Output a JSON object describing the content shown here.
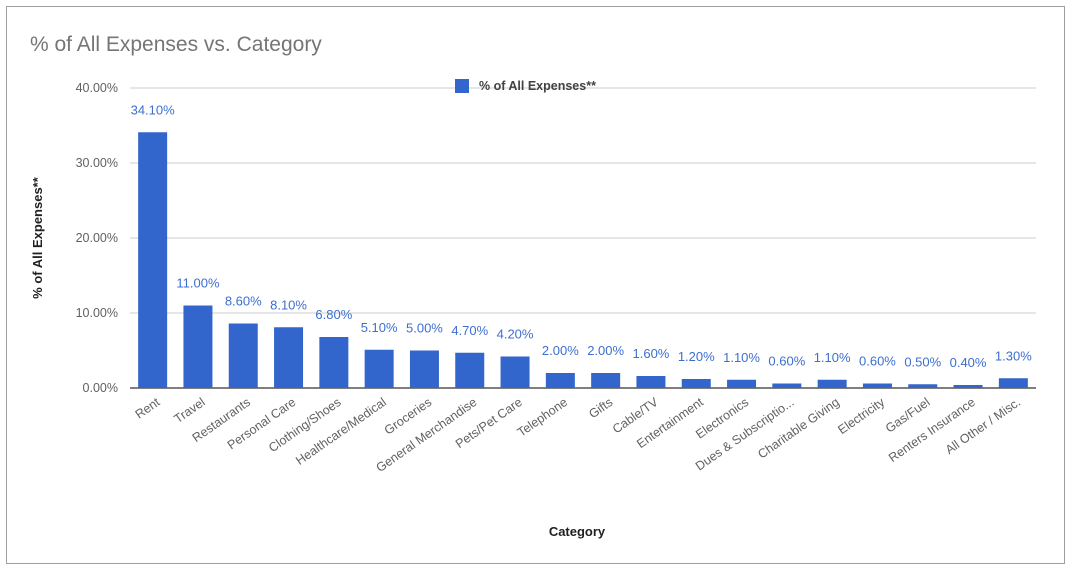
{
  "chart_data": {
    "type": "bar",
    "title": "% of All Expenses vs. Category",
    "xlabel": "Category",
    "ylabel": "% of All Expenses**",
    "ylim": [
      0,
      40
    ],
    "yticks": [
      "0.00%",
      "10.00%",
      "20.00%",
      "30.00%",
      "40.00%"
    ],
    "legend": {
      "position": "top",
      "entries": [
        "% of All Expenses**"
      ]
    },
    "grid": true,
    "color": "#3366cc",
    "categories": [
      "Rent",
      "Travel",
      "Restaurants",
      "Personal Care",
      "Clothing/Shoes",
      "Healthcare/Medical",
      "Groceries",
      "General Merchandise",
      "Pets/Pet Care",
      "Telephone",
      "Gifts",
      "Cable/TV",
      "Entertainment",
      "Electronics",
      "Dues & Subscriptio...",
      "Charitable Giving",
      "Electricity",
      "Gas/Fuel",
      "Renters Insurance",
      "All Other / Misc."
    ],
    "series": [
      {
        "name": "% of All Expenses**",
        "values": [
          34.1,
          11.0,
          8.6,
          8.1,
          6.8,
          5.1,
          5.0,
          4.7,
          4.2,
          2.0,
          2.0,
          1.6,
          1.2,
          1.1,
          0.6,
          1.1,
          0.6,
          0.5,
          0.4,
          1.3
        ],
        "labels": [
          "34.10%",
          "11.00%",
          "8.60%",
          "8.10%",
          "6.80%",
          "5.10%",
          "5.00%",
          "4.70%",
          "4.20%",
          "2.00%",
          "2.00%",
          "1.60%",
          "1.20%",
          "1.10%",
          "0.60%",
          "1.10%",
          "0.60%",
          "0.50%",
          "0.40%",
          "1.30%"
        ]
      }
    ]
  }
}
